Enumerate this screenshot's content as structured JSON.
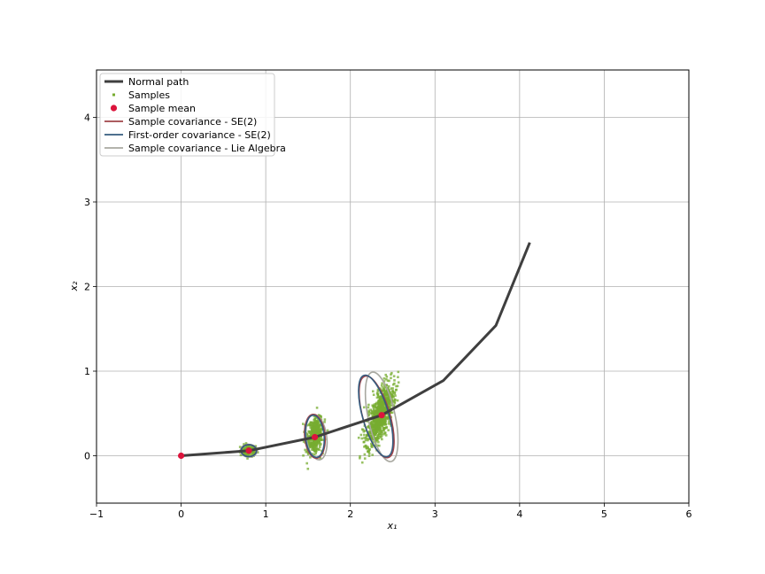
{
  "chart_data": {
    "type": "line",
    "xlabel": "x₁",
    "ylabel": "x₂",
    "xlim": [
      -1,
      6
    ],
    "ylim": [
      -0.56,
      4.56
    ],
    "xticks": [
      -1,
      0,
      1,
      2,
      3,
      4,
      5,
      6
    ],
    "yticks": [
      0,
      1,
      2,
      3,
      4
    ],
    "grid": true,
    "legend_position": "top-left",
    "colors": {
      "path": "#3f3f3f",
      "samples": "#77ac30",
      "mean": "#dc143c",
      "se2": "#a0444a",
      "first_order": "#345c7f",
      "lie": "#a8a8a0"
    },
    "legend": [
      {
        "label": "Normal path",
        "kind": "thick-line",
        "color": "#3f3f3f"
      },
      {
        "label": "Samples",
        "kind": "dot",
        "color": "#77ac30"
      },
      {
        "label": "Sample mean",
        "kind": "marker",
        "color": "#dc143c"
      },
      {
        "label": "Sample covariance - SE(2)",
        "kind": "line",
        "color": "#a0444a"
      },
      {
        "label": "First-order covariance - SE(2)",
        "kind": "line",
        "color": "#345c7f"
      },
      {
        "label": "Sample covariance - Lie Algebra",
        "kind": "line",
        "color": "#a8a8a0"
      }
    ],
    "path": {
      "x": [
        0.0,
        0.8,
        1.58,
        2.37,
        3.1,
        3.72,
        4.12
      ],
      "y": [
        0.0,
        0.06,
        0.22,
        0.48,
        0.89,
        1.54,
        2.52
      ]
    },
    "means": [
      {
        "x": 0.0,
        "y": 0.0
      },
      {
        "x": 0.8,
        "y": 0.06
      },
      {
        "x": 1.58,
        "y": 0.22
      },
      {
        "x": 2.37,
        "y": 0.48
      }
    ],
    "sample_clusters": [
      {
        "cx": 0.8,
        "cy": 0.06,
        "sx": 0.05,
        "sy": 0.035,
        "angle": 0,
        "n": 120
      },
      {
        "cx": 1.58,
        "cy": 0.24,
        "sx": 0.045,
        "sy": 0.1,
        "angle": -8,
        "n": 500
      },
      {
        "cx": 2.35,
        "cy": 0.48,
        "sx": 0.055,
        "sy": 0.19,
        "angle": -18,
        "n": 900
      }
    ],
    "ellipses": [
      {
        "series": "se2",
        "cx": 0.8,
        "cy": 0.06,
        "rx": 0.09,
        "ry": 0.07,
        "angle": 0
      },
      {
        "series": "first_order",
        "cx": 0.8,
        "cy": 0.06,
        "rx": 0.09,
        "ry": 0.07,
        "angle": 0
      },
      {
        "series": "lie",
        "cx": 0.8,
        "cy": 0.06,
        "rx": 0.1,
        "ry": 0.075,
        "angle": 0
      },
      {
        "series": "se2",
        "cx": 1.58,
        "cy": 0.23,
        "rx": 0.12,
        "ry": 0.26,
        "angle": -5
      },
      {
        "series": "first_order",
        "cx": 1.58,
        "cy": 0.23,
        "rx": 0.11,
        "ry": 0.25,
        "angle": -5
      },
      {
        "series": "lie",
        "cx": 1.6,
        "cy": 0.22,
        "rx": 0.12,
        "ry": 0.27,
        "angle": -8
      },
      {
        "series": "se2",
        "cx": 2.31,
        "cy": 0.46,
        "rx": 0.16,
        "ry": 0.5,
        "angle": -16
      },
      {
        "series": "first_order",
        "cx": 2.3,
        "cy": 0.47,
        "rx": 0.155,
        "ry": 0.5,
        "angle": -16
      },
      {
        "series": "lie",
        "cx": 2.37,
        "cy": 0.46,
        "rx": 0.16,
        "ry": 0.54,
        "angle": -12
      }
    ]
  }
}
